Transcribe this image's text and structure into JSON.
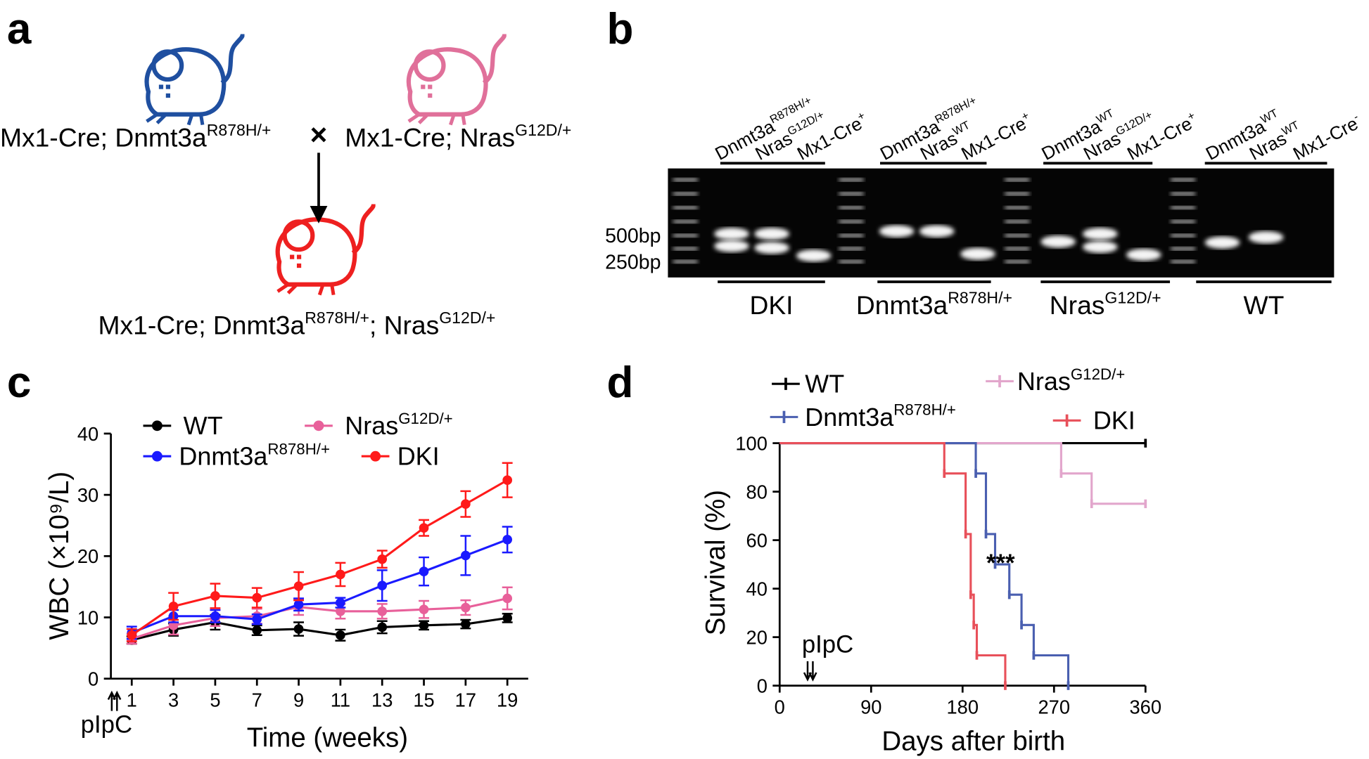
{
  "panel_labels": [
    "a",
    "b",
    "c",
    "d"
  ],
  "panel_a": {
    "parent1": {
      "base": "Mx1-Cre; Dnmt3a",
      "sup": "R878H/+"
    },
    "cross": "×",
    "parent2": {
      "base": "Mx1-Cre; Nras",
      "sup": "G12D/+"
    },
    "offspring": {
      "base": "Mx1-Cre; Dnmt3a",
      "sup": "R878H/+",
      "base2": "; Nras",
      "sup2": "G12D/+"
    }
  },
  "panel_b": {
    "lanes": [
      {
        "base": "Dnmt3a",
        "sup": "R878H/+"
      },
      {
        "base": "Nras",
        "sup": "G12D/+"
      },
      {
        "base": "Mx1-Cre",
        "sup": "+"
      },
      {
        "base": "Dnmt3a",
        "sup": "R878H/+"
      },
      {
        "base": "Nras",
        "sup": "WT"
      },
      {
        "base": "Mx1-Cre",
        "sup": "+"
      },
      {
        "base": "Dnmt3a",
        "sup": "WT"
      },
      {
        "base": "Nras",
        "sup": "G12D/+"
      },
      {
        "base": "Mx1-Cre",
        "sup": "+"
      },
      {
        "base": "Dnmt3a",
        "sup": "WT"
      },
      {
        "base": "Nras",
        "sup": "WT"
      },
      {
        "base": "Mx1-Cre",
        "sup": "-"
      }
    ],
    "size_markers": [
      "500bp",
      "250bp"
    ],
    "groups": [
      {
        "base": "DKI"
      },
      {
        "base": "Dnmt3a",
        "sup": "R878H/+"
      },
      {
        "base": "Nras",
        "sup": "G12D/+"
      },
      {
        "base": "WT"
      }
    ]
  },
  "chart_data": [
    {
      "type": "line",
      "xlabel": "Time (weeks)",
      "ylabel": "WBC (×10⁹/L)",
      "annotation": "pIpC",
      "x": [
        1,
        3,
        5,
        7,
        9,
        11,
        13,
        15,
        17,
        19
      ],
      "xlim": [
        0,
        20
      ],
      "xticks": [
        1,
        3,
        5,
        7,
        9,
        11,
        13,
        15,
        17,
        19
      ],
      "ylim": [
        0,
        40
      ],
      "yticks": [
        0,
        10,
        20,
        30,
        40
      ],
      "series": [
        {
          "name": "WT",
          "color": "#000000",
          "values": [
            6.3,
            8.0,
            9.2,
            7.9,
            8.1,
            7.1,
            8.4,
            8.7,
            8.9,
            9.9
          ],
          "errors": [
            0.6,
            1.0,
            1.2,
            0.8,
            1.1,
            0.9,
            1.0,
            0.7,
            0.7,
            0.7
          ]
        },
        {
          "name": "Nras",
          "name_superscript": "G12D/+",
          "color": "#e8609a",
          "values": [
            6.5,
            8.7,
            9.9,
            10.2,
            11.7,
            11.0,
            11.0,
            11.3,
            11.6,
            13.1
          ],
          "errors": [
            0.8,
            1.5,
            1.3,
            1.2,
            1.3,
            1.2,
            1.2,
            1.4,
            1.2,
            1.8
          ]
        },
        {
          "name": "Dnmt3a",
          "name_superscript": "R878H/+",
          "color": "#1a1aff",
          "values": [
            7.5,
            10.2,
            10.2,
            9.7,
            12.1,
            12.4,
            15.2,
            17.5,
            20.1,
            22.7
          ],
          "errors": [
            1.0,
            1.0,
            1.0,
            0.8,
            1.0,
            0.8,
            2.5,
            2.3,
            3.2,
            2.1
          ]
        },
        {
          "name": "DKI",
          "color": "#ff1a1a",
          "values": [
            7.1,
            11.8,
            13.5,
            13.2,
            15.1,
            17.0,
            19.5,
            24.6,
            28.5,
            32.4
          ],
          "errors": [
            1.0,
            2.2,
            2.0,
            1.6,
            2.3,
            1.9,
            1.4,
            1.3,
            2.1,
            2.8
          ]
        }
      ]
    },
    {
      "type": "step",
      "xlabel": "Days after birth",
      "ylabel": "Survival (%)",
      "annotations": [
        "***",
        "pIpC"
      ],
      "xlim": [
        0,
        360
      ],
      "xticks": [
        0,
        90,
        180,
        270,
        360
      ],
      "ylim": [
        0,
        100
      ],
      "yticks": [
        0,
        20,
        40,
        60,
        80,
        100
      ],
      "series": [
        {
          "name": "WT",
          "color": "#000000",
          "x": [
            0,
            360
          ],
          "values": [
            100,
            100
          ]
        },
        {
          "name": "Nras",
          "name_superscript": "G12D/+",
          "color": "#e2a6cc",
          "x": [
            0,
            277,
            307,
            360
          ],
          "values": [
            100,
            87.5,
            75,
            75
          ]
        },
        {
          "name": "Dnmt3a",
          "name_superscript": "R878H/+",
          "color": "#4a5fb0",
          "x": [
            0,
            193,
            203,
            212,
            226,
            238,
            250,
            284
          ],
          "values": [
            100,
            87.5,
            62.5,
            50,
            37.5,
            25,
            12.5,
            0
          ]
        },
        {
          "name": "DKI",
          "color": "#e8505a",
          "x": [
            0,
            162,
            183,
            188,
            191,
            194,
            222
          ],
          "values": [
            100,
            87.5,
            62.5,
            37.5,
            25,
            12.5,
            0
          ]
        }
      ]
    }
  ]
}
